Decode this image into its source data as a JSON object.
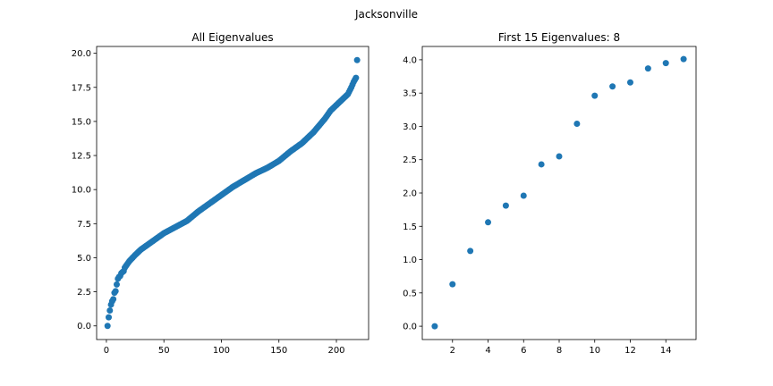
{
  "suptitle": "Jacksonville",
  "chart_data": [
    {
      "type": "scatter",
      "title": "All Eigenvalues",
      "xlabel": "",
      "ylabel": "",
      "xlim": [
        -8.5,
        228
      ],
      "ylim": [
        -1.0,
        20.5
      ],
      "xticks": [
        0,
        50,
        100,
        150,
        200
      ],
      "xtick_labels": [
        "0",
        "50",
        "100",
        "150",
        "200"
      ],
      "yticks": [
        0,
        2.5,
        5,
        7.5,
        10,
        12.5,
        15,
        17.5,
        20
      ],
      "ytick_labels": [
        "0.0",
        "2.5",
        "5.0",
        "7.5",
        "10.0",
        "12.5",
        "15.0",
        "17.5",
        "20.0"
      ],
      "grid": false,
      "color": "#1f77b4",
      "curve_anchors": {
        "x": [
          1,
          2,
          3,
          4,
          5,
          6,
          7,
          8,
          9,
          10,
          12,
          14,
          17,
          20,
          25,
          30,
          40,
          50,
          60,
          70,
          80,
          90,
          100,
          110,
          120,
          130,
          140,
          150,
          160,
          170,
          180,
          190,
          195,
          200,
          205,
          210,
          213,
          215,
          216,
          217,
          218
        ],
        "y": [
          0.0,
          0.63,
          1.13,
          1.56,
          1.81,
          1.96,
          2.43,
          2.55,
          3.04,
          3.46,
          3.75,
          4.0,
          4.4,
          4.75,
          5.2,
          5.6,
          6.2,
          6.8,
          7.25,
          7.7,
          8.4,
          9.0,
          9.6,
          10.2,
          10.7,
          11.2,
          11.6,
          12.1,
          12.8,
          13.4,
          14.2,
          15.2,
          15.8,
          16.2,
          16.6,
          17.0,
          17.5,
          17.9,
          18.05,
          18.2,
          19.5
        ]
      },
      "n_points": 218
    },
    {
      "type": "scatter",
      "title": "First 15 Eigenvalues: 8",
      "xlabel": "",
      "ylabel": "",
      "xlim": [
        0.3,
        15.7
      ],
      "ylim": [
        -0.2,
        4.2
      ],
      "xticks": [
        2,
        4,
        6,
        8,
        10,
        12,
        14
      ],
      "xtick_labels": [
        "2",
        "4",
        "6",
        "8",
        "10",
        "12",
        "14"
      ],
      "yticks": [
        0,
        0.5,
        1,
        1.5,
        2,
        2.5,
        3,
        3.5,
        4
      ],
      "ytick_labels": [
        "0.0",
        "0.5",
        "1.0",
        "1.5",
        "2.0",
        "2.5",
        "3.0",
        "3.5",
        "4.0"
      ],
      "grid": false,
      "color": "#1f77b4",
      "x": [
        1,
        2,
        3,
        4,
        5,
        6,
        7,
        8,
        9,
        10,
        11,
        12,
        13,
        14,
        15
      ],
      "y": [
        0.0,
        0.63,
        1.13,
        1.56,
        1.81,
        1.96,
        2.43,
        2.55,
        3.04,
        3.46,
        3.6,
        3.66,
        3.87,
        3.95,
        4.01
      ]
    }
  ]
}
